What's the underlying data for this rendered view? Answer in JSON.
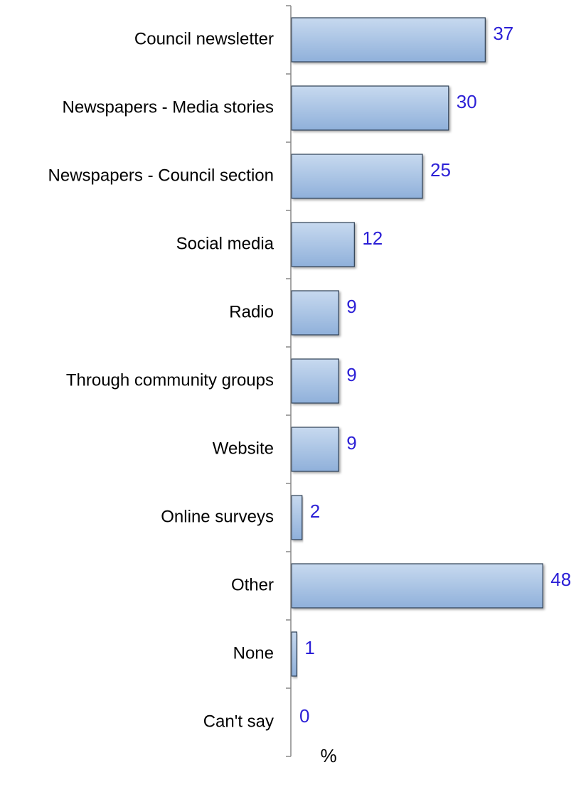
{
  "chart_data": {
    "type": "bar",
    "orientation": "horizontal",
    "categories": [
      "Council newsletter",
      "Newspapers - Media stories",
      "Newspapers - Council section",
      "Social media",
      "Radio",
      "Through community groups",
      "Website",
      "Online surveys",
      "Other",
      "None",
      "Can't say"
    ],
    "values": [
      37,
      30,
      25,
      12,
      9,
      9,
      9,
      2,
      48,
      1,
      0
    ],
    "xlabel": "%",
    "ylabel": "",
    "xlim": [
      0,
      50
    ],
    "grid": false,
    "legend": "none",
    "data_labels": true
  },
  "colors": {
    "bar_fill_top": "#c7d9ef",
    "bar_fill_bottom": "#8fb0da",
    "bar_edge": "#2f3f55",
    "value_label": "#2b1fd6",
    "axis_line": "#888888",
    "category_label": "#000000"
  }
}
